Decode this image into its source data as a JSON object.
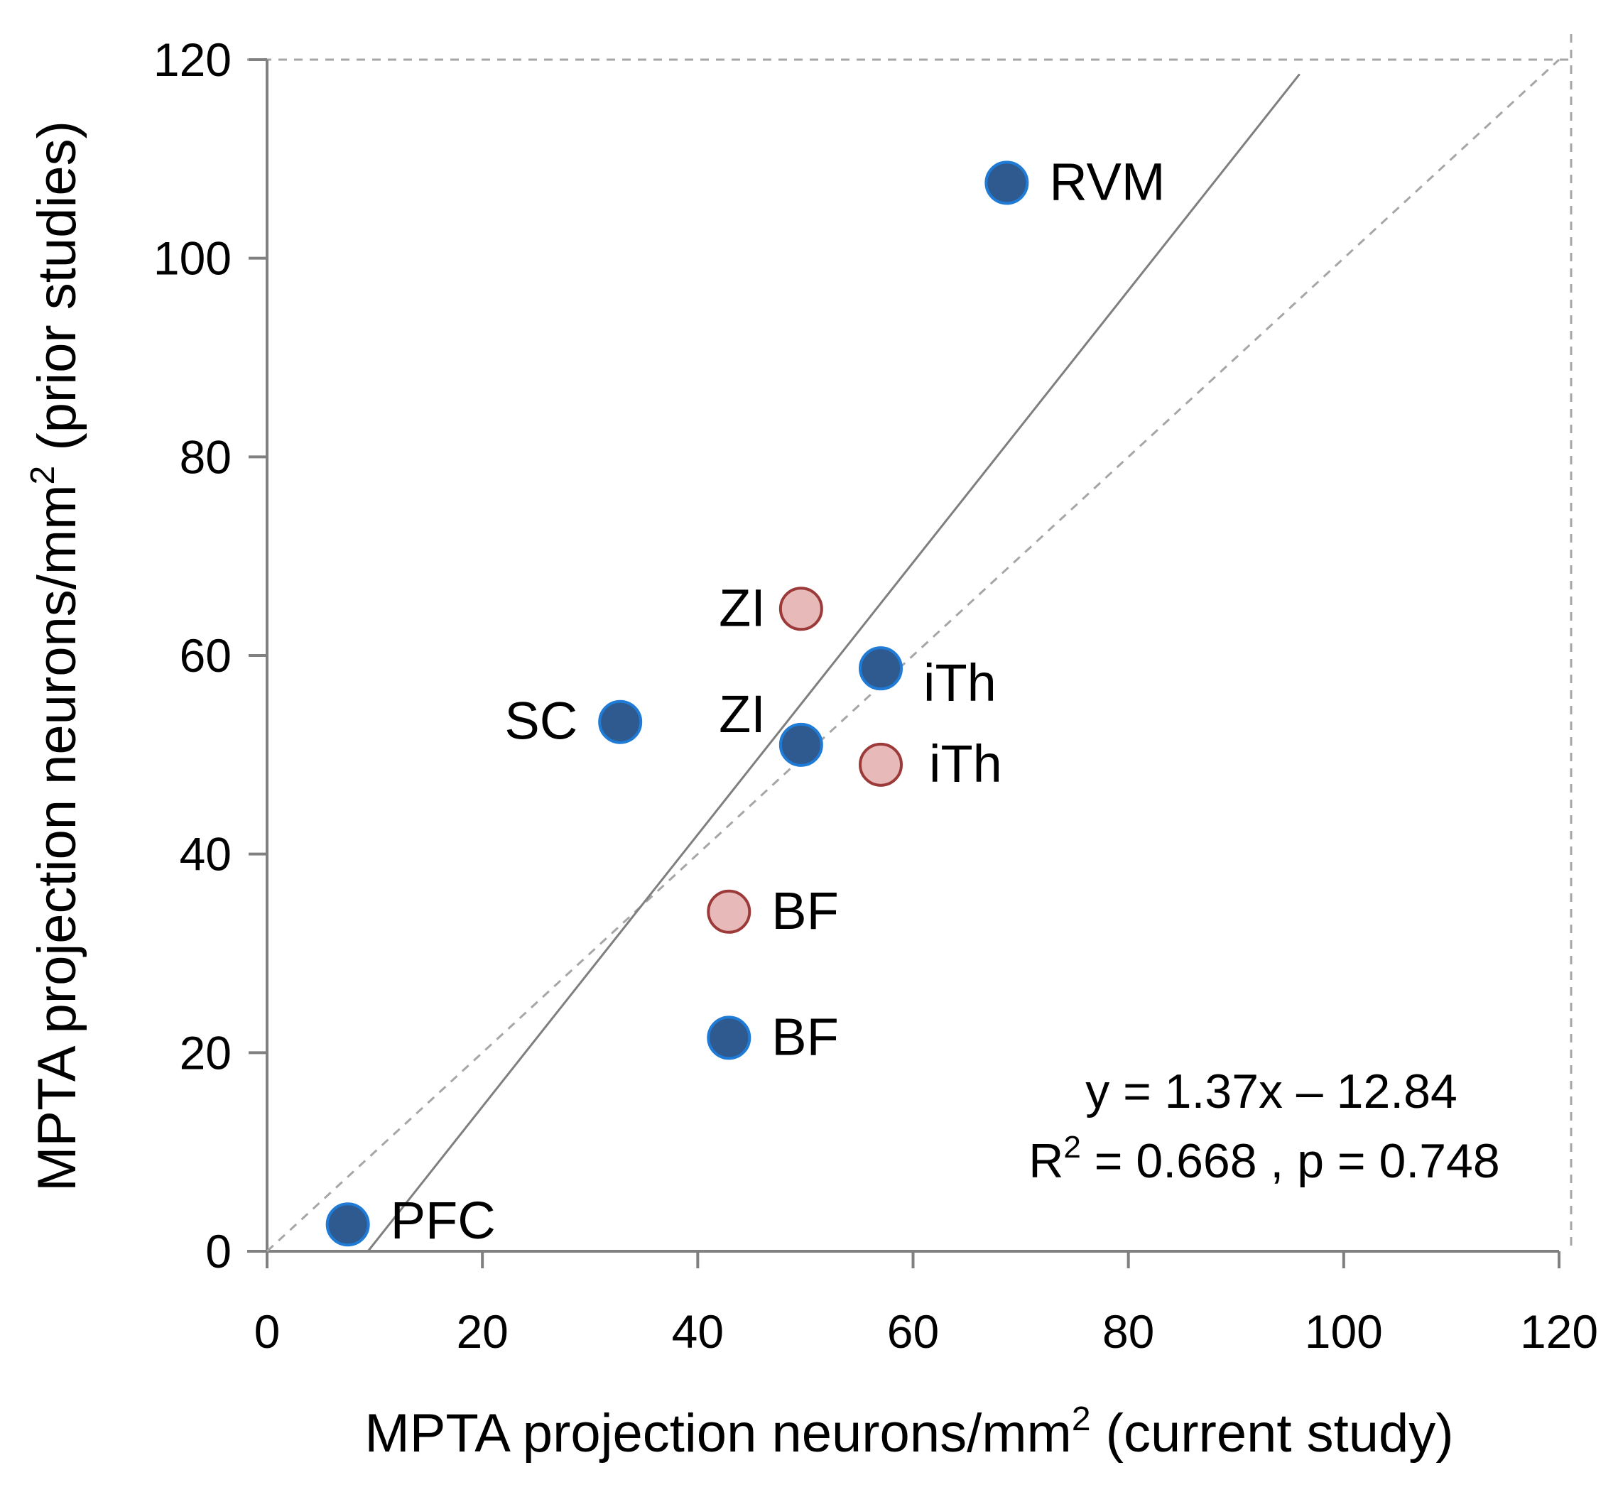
{
  "chart_data": {
    "type": "scatter",
    "xlabel": "MPTA projection neurons/mm",
    "xlabel_sup": "2",
    "xlabel_suffix": " (current study)",
    "ylabel": "MPTA projection neurons/mm",
    "ylabel_sup": "2",
    "ylabel_suffix": " (prior studies)",
    "xlim": [
      0,
      120
    ],
    "ylim": [
      0,
      120
    ],
    "x_ticks": [
      "0",
      "20",
      "40",
      "60",
      "80",
      "100",
      "120"
    ],
    "y_ticks": [
      "0",
      "20",
      "40",
      "60",
      "80",
      "100",
      "120"
    ],
    "grid": false,
    "series": [
      {
        "color": "#2e5a8f",
        "edge": "#1f7bd6",
        "points": [
          {
            "label": "PFC",
            "x": 7.5,
            "y": 2.7
          },
          {
            "label": "SC",
            "x": 32.8,
            "y": 53.3
          },
          {
            "label": "BF",
            "x": 42.9,
            "y": 21.5
          },
          {
            "label": "ZI",
            "x": 49.6,
            "y": 51.0
          },
          {
            "label": "iTh",
            "x": 57.0,
            "y": 58.7
          },
          {
            "label": "RVM",
            "x": 68.7,
            "y": 107.6
          }
        ]
      },
      {
        "color": "#e8b9b9",
        "edge": "#9c3a3a",
        "points": [
          {
            "label": "BF",
            "x": 42.9,
            "y": 34.2
          },
          {
            "label": "ZI",
            "x": 49.6,
            "y": 64.7
          },
          {
            "label": "iTh",
            "x": 57.0,
            "y": 49.0
          }
        ]
      }
    ],
    "regression": {
      "slope": 1.37,
      "intercept": -12.84,
      "x_range": [
        9.4,
        95.9
      ]
    },
    "identity_line": {
      "style": "dashed",
      "x_range": [
        0,
        120
      ]
    },
    "annotations": {
      "equation": "y = 1.37x – 12.84",
      "stats_prefix": "R",
      "stats_sup": "2",
      "stats_suffix": " = 0.668 , p = 0.748"
    }
  }
}
